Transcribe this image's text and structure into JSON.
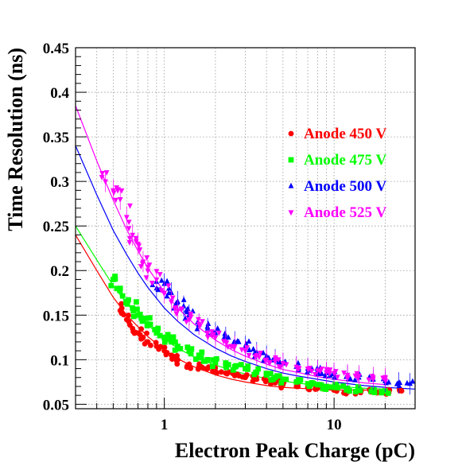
{
  "chart_data": {
    "type": "scatter",
    "title": "",
    "xlabel": "Electron Peak Charge (pC)",
    "ylabel": "Time Resolution (ns)",
    "x_scale": "log",
    "xlim": [
      0.3,
      30
    ],
    "ylim": [
      0.045,
      0.45
    ],
    "x_ticks": [
      {
        "value": 1,
        "label": "1"
      },
      {
        "value": 10,
        "label": "10"
      }
    ],
    "y_ticks": [
      {
        "value": 0.05,
        "label": "0.05"
      },
      {
        "value": 0.1,
        "label": "0.1"
      },
      {
        "value": 0.15,
        "label": "0.15"
      },
      {
        "value": 0.2,
        "label": "0.2"
      },
      {
        "value": 0.25,
        "label": "0.25"
      },
      {
        "value": 0.3,
        "label": "0.3"
      },
      {
        "value": 0.35,
        "label": "0.35"
      },
      {
        "value": 0.4,
        "label": "0.4"
      },
      {
        "value": 0.45,
        "label": "0.45"
      }
    ],
    "grid": true,
    "legend_position": "top-right",
    "series": [
      {
        "name": "Anode 450 V",
        "color": "#ff0000",
        "marker": "circle",
        "x": [
          0.55,
          0.6,
          0.65,
          0.7,
          0.75,
          0.8,
          0.9,
          1.0,
          1.1,
          1.2,
          1.4,
          1.6,
          1.8,
          2.0,
          2.3,
          2.6,
          3.0,
          3.5,
          4.0,
          4.5,
          5.0,
          6.0,
          7.0,
          8.0,
          9.0,
          10.0,
          12.0,
          14.0,
          17.0,
          21.0,
          25.0
        ],
        "y": [
          0.155,
          0.145,
          0.135,
          0.13,
          0.125,
          0.12,
          0.115,
          0.11,
          0.105,
          0.1,
          0.095,
          0.092,
          0.09,
          0.087,
          0.085,
          0.082,
          0.08,
          0.078,
          0.076,
          0.074,
          0.072,
          0.07,
          0.069,
          0.068,
          0.067,
          0.066,
          0.065,
          0.064,
          0.064,
          0.063,
          0.065
        ],
        "fit_curve": {
          "x": [
            0.3,
            0.4,
            0.5,
            0.6,
            0.7,
            0.8,
            1.0,
            1.2,
            1.5,
            2.0,
            2.5,
            3.0,
            4.0,
            5.0,
            6.0,
            8.0,
            10.0,
            15.0,
            20.0
          ],
          "y": [
            0.24,
            0.2,
            0.17,
            0.15,
            0.137,
            0.126,
            0.111,
            0.101,
            0.092,
            0.083,
            0.078,
            0.075,
            0.071,
            0.069,
            0.068,
            0.067,
            0.066,
            0.066,
            0.066
          ]
        }
      },
      {
        "name": "Anode 475 V",
        "color": "#00ff00",
        "marker": "square",
        "x": [
          0.5,
          0.55,
          0.6,
          0.65,
          0.7,
          0.75,
          0.8,
          0.9,
          1.0,
          1.1,
          1.2,
          1.4,
          1.6,
          1.8,
          2.0,
          2.3,
          2.6,
          3.0,
          3.5,
          4.0,
          4.5,
          5.0,
          6.0,
          7.0,
          8.0,
          9.0,
          10.0,
          12.0,
          14.0,
          17.0,
          20.0
        ],
        "y": [
          0.19,
          0.18,
          0.165,
          0.158,
          0.15,
          0.145,
          0.14,
          0.13,
          0.125,
          0.12,
          0.115,
          0.11,
          0.105,
          0.1,
          0.097,
          0.095,
          0.092,
          0.09,
          0.086,
          0.083,
          0.08,
          0.078,
          0.075,
          0.073,
          0.072,
          0.07,
          0.069,
          0.068,
          0.067,
          0.066,
          0.065
        ],
        "fit_curve": {
          "x": [
            0.3,
            0.4,
            0.5,
            0.6,
            0.7,
            0.8,
            1.0,
            1.2,
            1.5,
            2.0,
            2.5,
            3.0,
            4.0,
            5.0,
            6.0,
            8.0,
            10.0,
            15.0,
            20.0
          ],
          "y": [
            0.25,
            0.212,
            0.183,
            0.163,
            0.15,
            0.139,
            0.123,
            0.113,
            0.103,
            0.094,
            0.088,
            0.084,
            0.079,
            0.076,
            0.074,
            0.071,
            0.07,
            0.068,
            0.067
          ]
        }
      },
      {
        "name": "Anode 500 V",
        "color": "#0000ff",
        "marker": "triangle-up",
        "x": [
          0.9,
          1.0,
          1.1,
          1.2,
          1.3,
          1.4,
          1.6,
          1.8,
          2.0,
          2.3,
          2.6,
          3.0,
          3.5,
          4.0,
          4.5,
          5.0,
          6.0,
          7.0,
          8.0,
          9.0,
          10.0,
          12.0,
          14.0,
          17.0,
          20.0,
          24.0,
          28.0
        ],
        "y": [
          0.18,
          0.185,
          0.175,
          0.165,
          0.16,
          0.15,
          0.14,
          0.135,
          0.13,
          0.125,
          0.12,
          0.115,
          0.108,
          0.104,
          0.1,
          0.096,
          0.092,
          0.09,
          0.088,
          0.085,
          0.084,
          0.082,
          0.08,
          0.078,
          0.076,
          0.074,
          0.073
        ],
        "fit_curve": {
          "x": [
            0.3,
            0.4,
            0.5,
            0.6,
            0.7,
            0.8,
            1.0,
            1.2,
            1.5,
            2.0,
            2.5,
            3.0,
            4.0,
            5.0,
            6.0,
            8.0,
            10.0,
            15.0,
            20.0,
            30.0
          ],
          "y": [
            0.34,
            0.285,
            0.245,
            0.218,
            0.197,
            0.181,
            0.158,
            0.143,
            0.128,
            0.113,
            0.104,
            0.098,
            0.09,
            0.085,
            0.082,
            0.078,
            0.075,
            0.071,
            0.069,
            0.067
          ]
        }
      },
      {
        "name": "Anode 525 V",
        "color": "#ff00ff",
        "marker": "triangle-down",
        "x": [
          0.45,
          0.5,
          0.55,
          0.6,
          0.65,
          0.7,
          0.75,
          0.8,
          0.9,
          1.0,
          1.1,
          1.2,
          1.4,
          1.6,
          1.8,
          2.0,
          2.3,
          2.6,
          3.0,
          3.5,
          4.0,
          4.5,
          5.0,
          6.0,
          7.0,
          8.0,
          9.0,
          10.0,
          12.0,
          14.0,
          17.0,
          20.0
        ],
        "y": [
          0.3,
          0.29,
          0.28,
          0.26,
          0.24,
          0.23,
          0.21,
          0.2,
          0.19,
          0.175,
          0.165,
          0.155,
          0.145,
          0.14,
          0.13,
          0.125,
          0.12,
          0.115,
          0.11,
          0.105,
          0.1,
          0.098,
          0.096,
          0.092,
          0.09,
          0.088,
          0.086,
          0.085,
          0.083,
          0.082,
          0.08,
          0.079
        ],
        "fit_curve": {
          "x": [
            0.3,
            0.4,
            0.5,
            0.6,
            0.7,
            0.8,
            1.0,
            1.2,
            1.5,
            2.0,
            2.5,
            3.0,
            4.0,
            5.0,
            6.0,
            8.0,
            10.0,
            15.0,
            20.0
          ],
          "y": [
            0.385,
            0.323,
            0.279,
            0.246,
            0.222,
            0.203,
            0.176,
            0.158,
            0.14,
            0.122,
            0.111,
            0.104,
            0.095,
            0.089,
            0.086,
            0.081,
            0.078,
            0.074,
            0.072
          ]
        }
      }
    ]
  }
}
